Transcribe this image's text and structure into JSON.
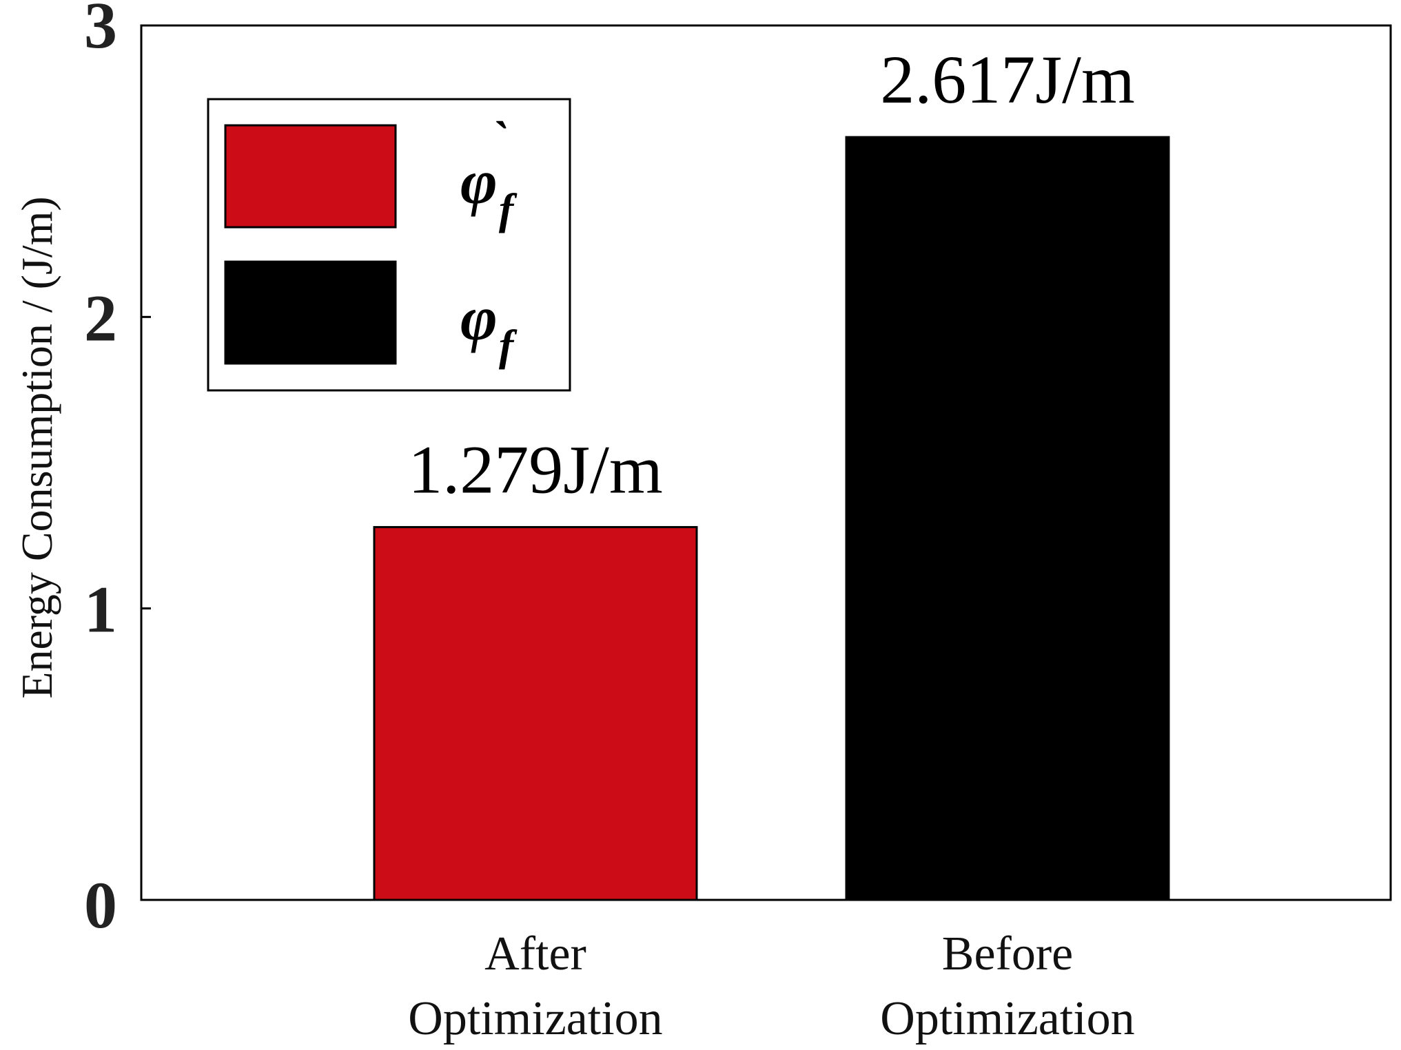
{
  "chart_data": {
    "type": "bar",
    "title": "",
    "xlabel": "",
    "ylabel": "Energy Consumption / (J/m)",
    "ylim": [
      0,
      3
    ],
    "yticks": [
      0,
      1,
      2,
      3
    ],
    "grid": false,
    "legend_position": "top-left",
    "categories": [
      [
        "After",
        "Optimization"
      ],
      [
        "Before",
        "Optimization"
      ]
    ],
    "values": [
      1.279,
      2.617
    ],
    "data_labels": [
      "1.279J/m",
      "2.617J/m"
    ],
    "colors": [
      "#cc0c17",
      "#000000"
    ],
    "legend": [
      {
        "symbol": "φ",
        "accent": "`",
        "subscript": "f",
        "color": "#cc0c17"
      },
      {
        "symbol": "φ",
        "accent": "",
        "subscript": "f",
        "color": "#000000"
      }
    ]
  }
}
